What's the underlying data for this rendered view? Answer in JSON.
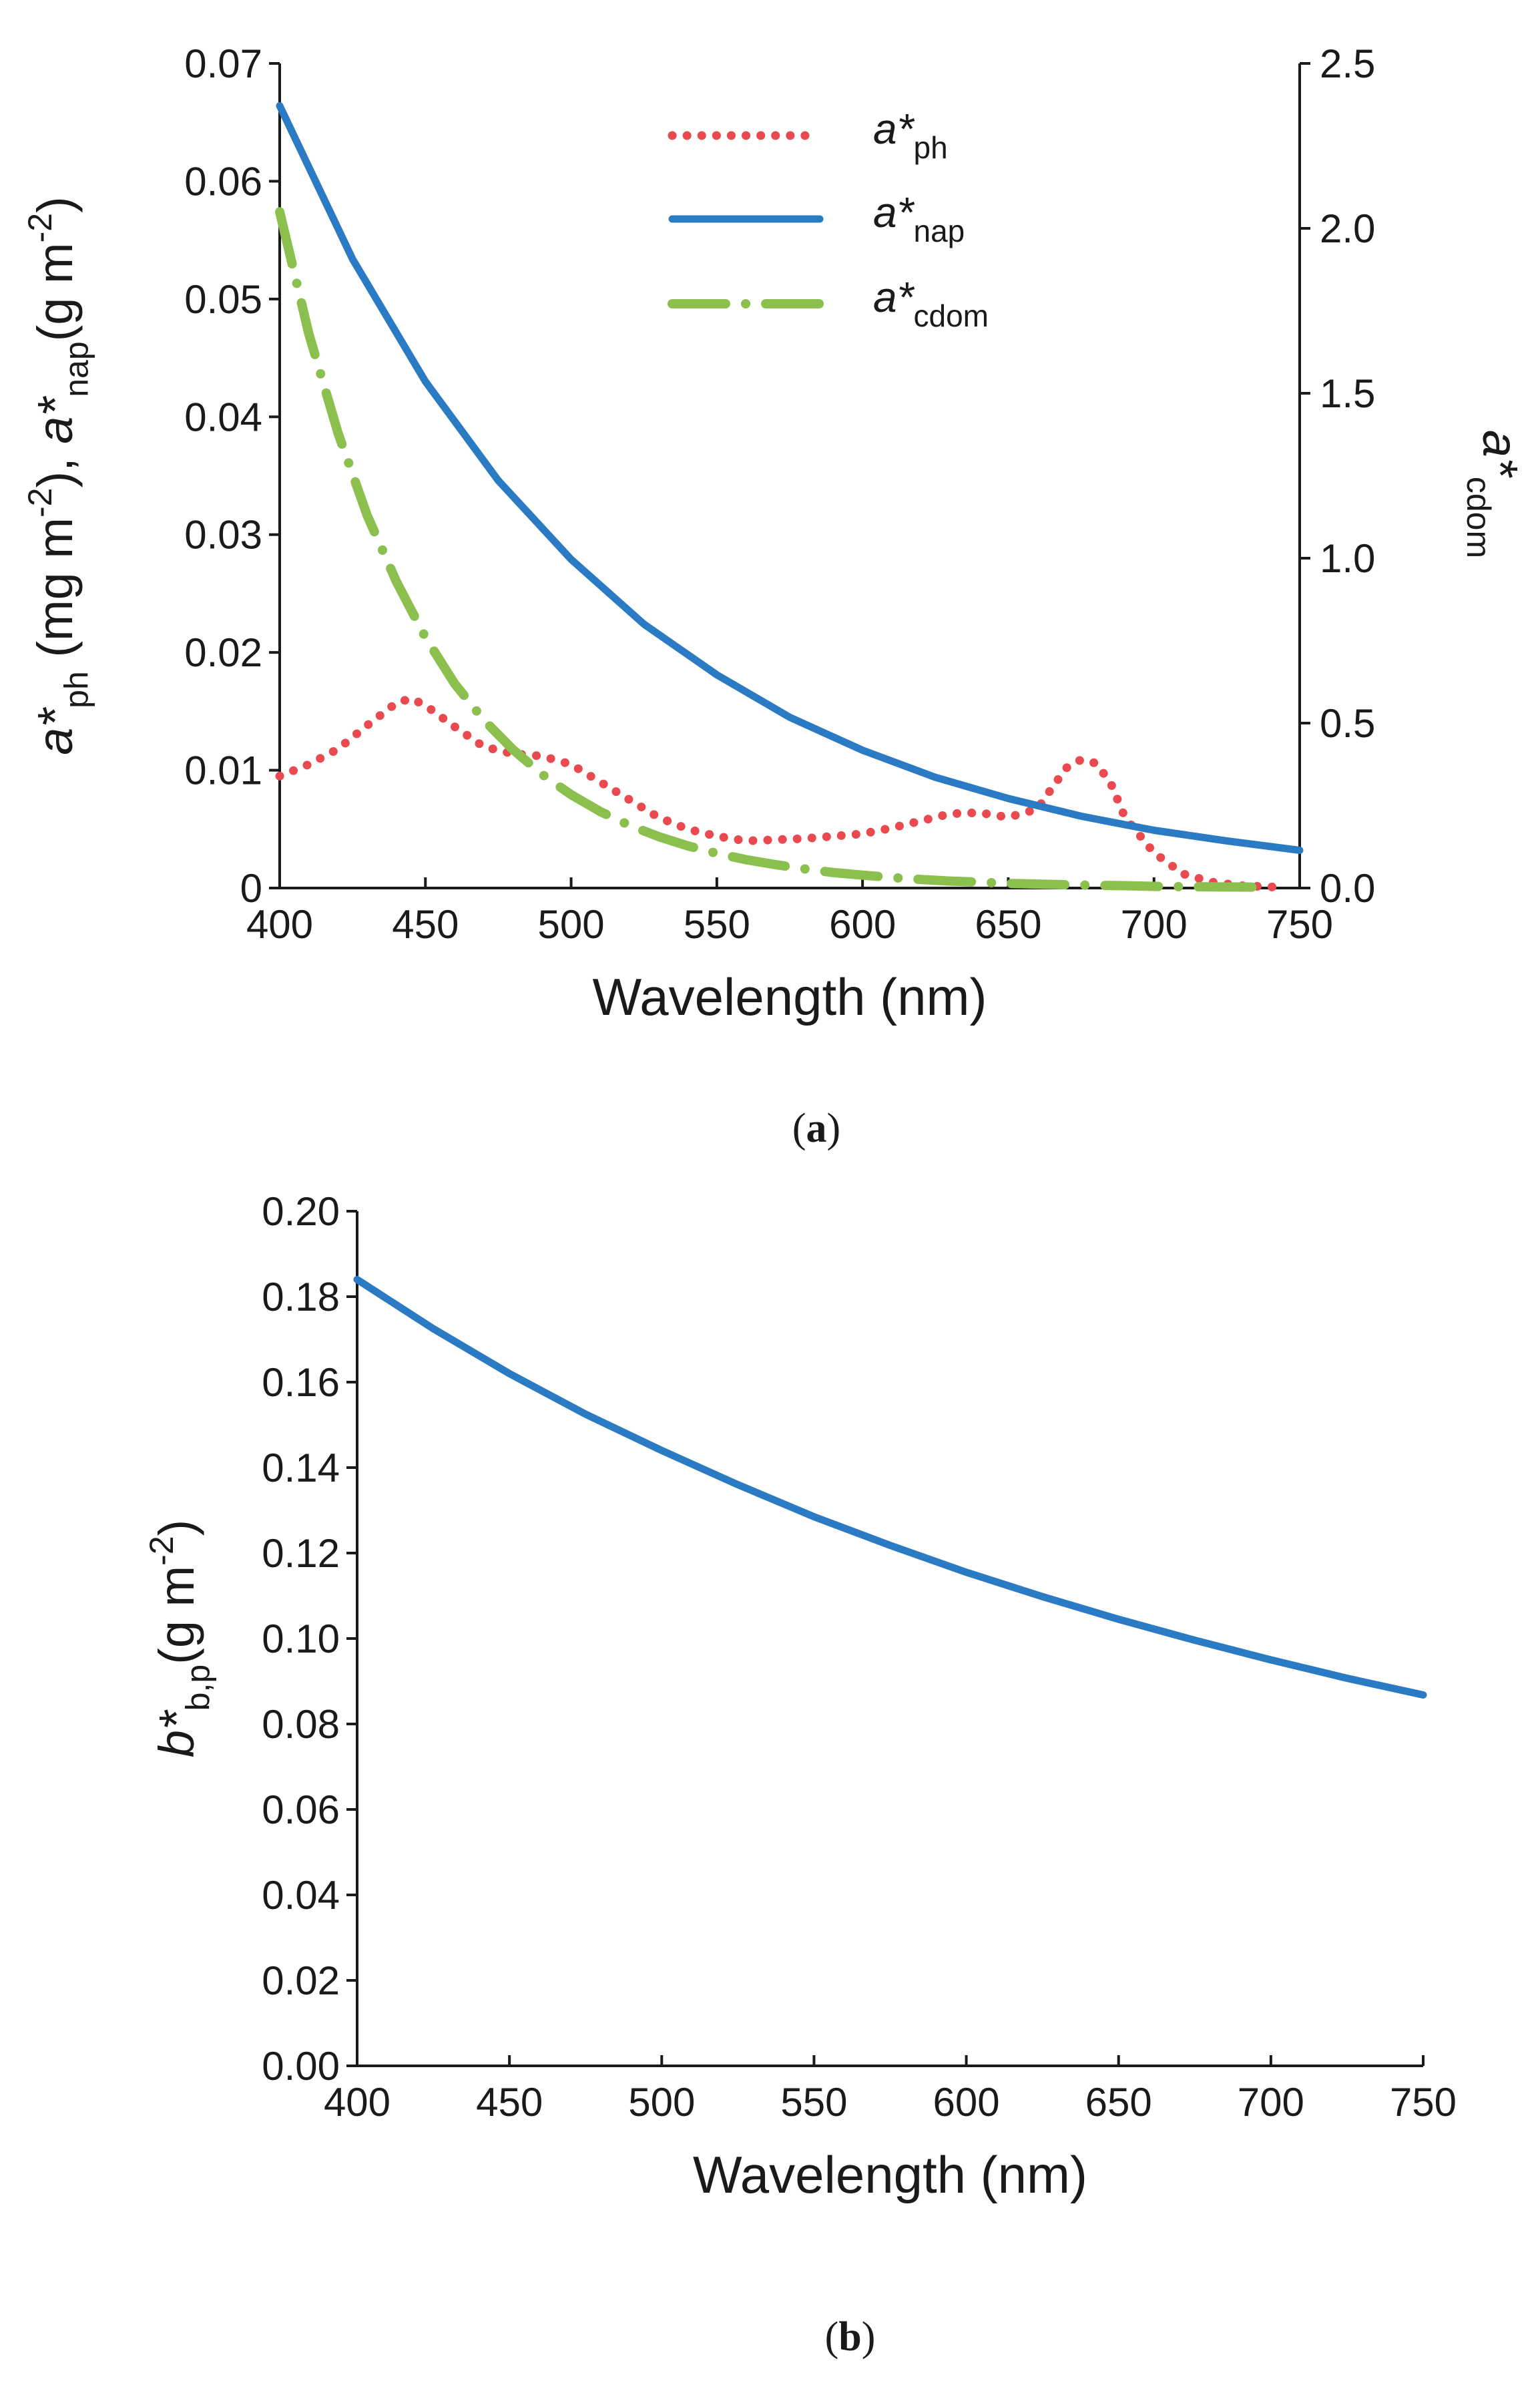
{
  "chart_data": [
    {
      "id": "a",
      "type": "line",
      "panel_label": {
        "open": "(",
        "letter": "a",
        "close": ")"
      },
      "xlabel": "Wavelength (nm)",
      "xlim": [
        400,
        750
      ],
      "x_ticks": [
        400,
        450,
        500,
        550,
        600,
        650,
        700,
        750
      ],
      "ylabel_left": {
        "parts": [
          {
            "t": "a*",
            "i": true
          },
          {
            "t": "ph",
            "sub": true
          },
          {
            "t": " (mg m"
          },
          {
            "t": "-2",
            "sup": true
          },
          {
            "t": "), "
          },
          {
            "t": "a*",
            "i": true
          },
          {
            "t": "nap",
            "sub": true
          },
          {
            "t": "(g m"
          },
          {
            "t": "-2",
            "sup": true
          },
          {
            "t": ")"
          }
        ]
      },
      "ylabel_right": {
        "main": "a*",
        "sub": "cdom"
      },
      "ylim_left": [
        0,
        0.07
      ],
      "y_ticks_left": [
        "0",
        "0.01",
        "0.02",
        "0.03",
        "0.04",
        "0.05",
        "0.06",
        "0.07"
      ],
      "ylim_right": [
        0,
        2.5
      ],
      "y_ticks_right": [
        "0.0",
        "0.5",
        "1.0",
        "1.5",
        "2.0",
        "2.5"
      ],
      "legend": [
        {
          "main": "a*",
          "sub": "ph",
          "style": "dotted",
          "color": "#e84a4f"
        },
        {
          "main": "a*",
          "sub": "nap",
          "style": "solid",
          "color": "#2b7bc4"
        },
        {
          "main": "a*",
          "sub": "cdom",
          "style": "dashdot",
          "color": "#8bc04f"
        }
      ],
      "series": [
        {
          "name": "a*ph",
          "axis": "left",
          "color": "#e84a4f",
          "style": "dotted",
          "x": [
            400,
            410,
            420,
            430,
            440,
            445,
            450,
            460,
            470,
            480,
            490,
            500,
            510,
            520,
            530,
            540,
            550,
            560,
            570,
            580,
            590,
            600,
            610,
            620,
            630,
            640,
            650,
            660,
            665,
            670,
            675,
            680,
            685,
            690,
            700,
            710,
            720,
            730,
            740,
            745
          ],
          "y": [
            0.0095,
            0.0105,
            0.0118,
            0.0138,
            0.0157,
            0.0161,
            0.0155,
            0.0137,
            0.012,
            0.0114,
            0.0112,
            0.0105,
            0.009,
            0.0075,
            0.006,
            0.005,
            0.0044,
            0.004,
            0.0041,
            0.0042,
            0.0044,
            0.0046,
            0.0051,
            0.0057,
            0.0063,
            0.0064,
            0.006,
            0.0067,
            0.0085,
            0.0102,
            0.0109,
            0.0106,
            0.009,
            0.006,
            0.003,
            0.0012,
            0.0005,
            0.0002,
            0.0001,
            0.0
          ]
        },
        {
          "name": "a*nap",
          "axis": "left",
          "color": "#2b7bc4",
          "style": "solid",
          "x": [
            400,
            425,
            450,
            475,
            500,
            525,
            550,
            575,
            600,
            625,
            650,
            675,
            700,
            725,
            750
          ],
          "y": [
            0.0664,
            0.0534,
            0.043,
            0.0346,
            0.0279,
            0.0224,
            0.0181,
            0.0145,
            0.0117,
            0.0094,
            0.0076,
            0.0061,
            0.0049,
            0.004,
            0.0032
          ]
        },
        {
          "name": "a*cdom",
          "axis": "right",
          "color": "#8bc04f",
          "style": "dashdot",
          "x": [
            400,
            410,
            420,
            430,
            440,
            450,
            460,
            470,
            480,
            490,
            500,
            510,
            520,
            530,
            540,
            550,
            560,
            570,
            580,
            590,
            600,
            610,
            620,
            630,
            640,
            650,
            660,
            670,
            680,
            690,
            700,
            710,
            720,
            730,
            740
          ],
          "y": [
            2.05,
            1.68,
            1.38,
            1.13,
            0.93,
            0.76,
            0.62,
            0.51,
            0.42,
            0.345,
            0.283,
            0.232,
            0.19,
            0.156,
            0.128,
            0.105,
            0.086,
            0.071,
            0.058,
            0.047,
            0.039,
            0.032,
            0.026,
            0.021,
            0.018,
            0.014,
            0.012,
            0.01,
            0.008,
            0.007,
            0.005,
            0.004,
            0.0035,
            0.003,
            0.0025
          ]
        }
      ]
    },
    {
      "id": "b",
      "type": "line",
      "panel_label": {
        "open": "(",
        "letter": "b",
        "close": ")"
      },
      "xlabel": "Wavelength (nm)",
      "xlim": [
        400,
        750
      ],
      "x_ticks": [
        400,
        450,
        500,
        550,
        600,
        650,
        700,
        750
      ],
      "ylabel_left": {
        "parts": [
          {
            "t": "b*",
            "i": true
          },
          {
            "t": "b,p",
            "sub": true
          },
          {
            "t": "(g m"
          },
          {
            "t": "-2",
            "sup": true
          },
          {
            "t": ")"
          }
        ]
      },
      "ylim_left": [
        0,
        0.2
      ],
      "y_ticks_left": [
        "0.00",
        "0.02",
        "0.04",
        "0.06",
        "0.08",
        "0.10",
        "0.12",
        "0.14",
        "0.16",
        "0.18",
        "0.20"
      ],
      "series": [
        {
          "name": "b*b,p",
          "axis": "left",
          "color": "#2b7bc4",
          "style": "solid",
          "x": [
            400,
            425,
            450,
            475,
            500,
            525,
            550,
            575,
            600,
            625,
            650,
            675,
            700,
            725,
            750
          ],
          "y": [
            0.184,
            0.1725,
            0.162,
            0.1525,
            0.144,
            0.136,
            0.1285,
            0.1218,
            0.1155,
            0.1098,
            0.1045,
            0.0996,
            0.095,
            0.0907,
            0.0868
          ]
        }
      ]
    }
  ]
}
